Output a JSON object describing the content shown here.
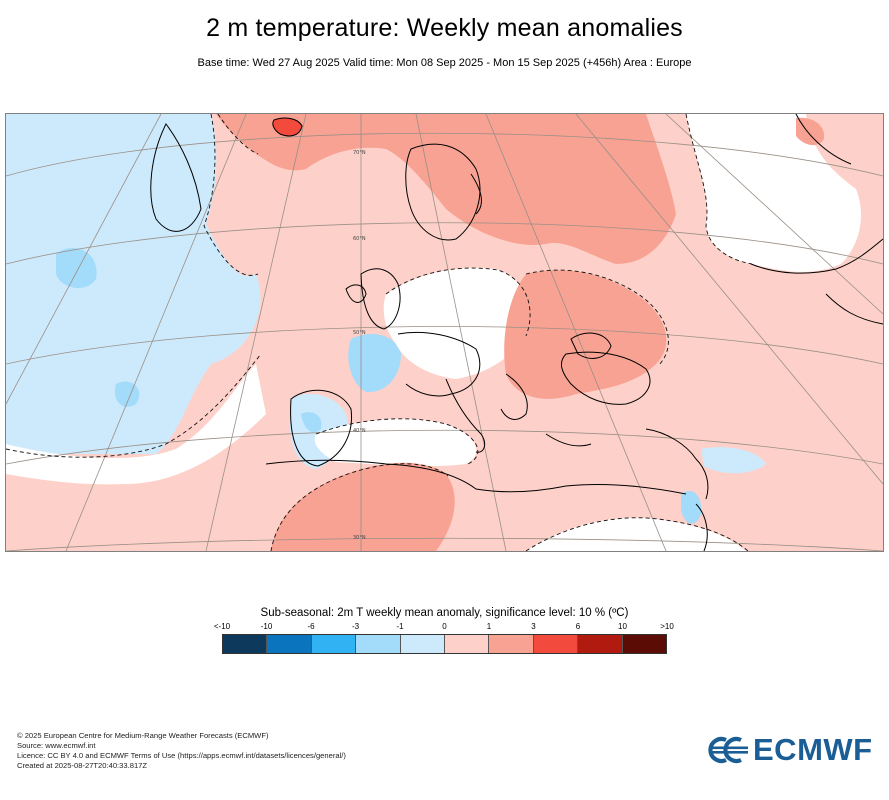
{
  "header": {
    "title": "2 m temperature: Weekly mean anomalies",
    "subtitle": "Base time: Wed 27 Aug 2025 Valid time: Mon 08 Sep 2025 - Mon 15 Sep 2025 (+456h) Area : Europe"
  },
  "map": {
    "region": "Europe",
    "colors": {
      "strong_warm": "#f8a293",
      "warm": "#fdd1c9",
      "neutral": "#ffffff",
      "cool": "#cdeafd",
      "cooler": "#a3dbfa",
      "hot_spot": "#f24a3c",
      "land_border": "#000000",
      "graticule": "#9a8f86"
    },
    "graticule_labels": [
      "70°N",
      "60°N",
      "50°N",
      "40°N",
      "30°N"
    ]
  },
  "legend": {
    "title": "Sub-seasonal: 2m T weekly mean anomaly, significance level: 10 % (ºC)",
    "ticks": [
      "<-10",
      "-10",
      "-6",
      "-3",
      "-1",
      "0",
      "1",
      "3",
      "6",
      "10",
      ">10"
    ],
    "bins": [
      {
        "color": "#0d3a5c"
      },
      {
        "color": "#0b74be"
      },
      {
        "color": "#31b2f2"
      },
      {
        "color": "#a3dbfa"
      },
      {
        "color": "#cdeafd"
      },
      {
        "color": "#fdd1c9"
      },
      {
        "color": "#f8a293"
      },
      {
        "color": "#f24a3c"
      },
      {
        "color": "#b11a0e"
      },
      {
        "color": "#5b0d05"
      }
    ]
  },
  "footer": {
    "line1": "© 2025 European Centre for Medium-Range Weather Forecasts (ECMWF)",
    "line2": "Source: www.ecmwf.int",
    "line3": "Licence: CC BY 4.0 and ECMWF Terms of Use (https://apps.ecmwf.int/datasets/licences/general/)",
    "line4": "Created at 2025-08-27T20:40:33.817Z"
  },
  "logo": {
    "text": "ECMWF",
    "color": "#1b5e96"
  }
}
